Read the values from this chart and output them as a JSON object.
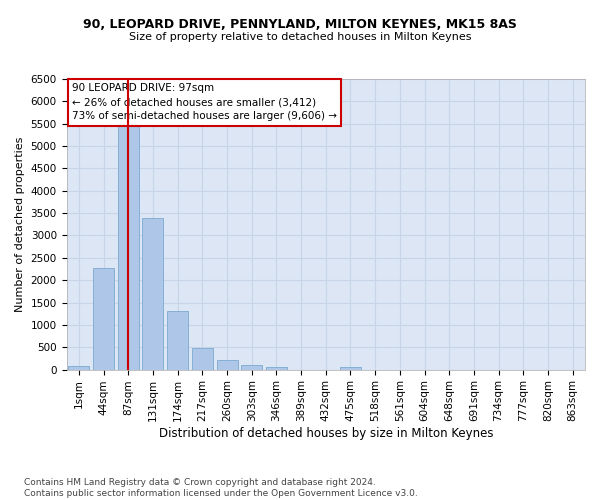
{
  "title_line1": "90, LEOPARD DRIVE, PENNYLAND, MILTON KEYNES, MK15 8AS",
  "title_line2": "Size of property relative to detached houses in Milton Keynes",
  "xlabel": "Distribution of detached houses by size in Milton Keynes",
  "ylabel": "Number of detached properties",
  "footnote_line1": "Contains HM Land Registry data © Crown copyright and database right 2024.",
  "footnote_line2": "Contains public sector information licensed under the Open Government Licence v3.0.",
  "bar_labels": [
    "1sqm",
    "44sqm",
    "87sqm",
    "131sqm",
    "174sqm",
    "217sqm",
    "260sqm",
    "303sqm",
    "346sqm",
    "389sqm",
    "432sqm",
    "475sqm",
    "518sqm",
    "561sqm",
    "604sqm",
    "648sqm",
    "691sqm",
    "734sqm",
    "777sqm",
    "820sqm",
    "863sqm"
  ],
  "bar_values": [
    70,
    2280,
    5440,
    3380,
    1310,
    475,
    220,
    95,
    60,
    0,
    0,
    60,
    0,
    0,
    0,
    0,
    0,
    0,
    0,
    0,
    0
  ],
  "bar_color": "#aec6e8",
  "bar_edgecolor": "#7aaad0",
  "grid_color": "#c8d4e8",
  "plot_background_color": "#dce6f5",
  "figure_background_color": "#ffffff",
  "vline_x": 2.0,
  "vline_color": "#cc0000",
  "annotation_text": "90 LEOPARD DRIVE: 97sqm\n← 26% of detached houses are smaller (3,412)\n73% of semi-detached houses are larger (9,606) →",
  "annotation_box_edgecolor": "#cc0000",
  "annotation_box_facecolor": "#ffffff",
  "ylim": [
    0,
    6500
  ],
  "yticks": [
    0,
    500,
    1000,
    1500,
    2000,
    2500,
    3000,
    3500,
    4000,
    4500,
    5000,
    5500,
    6000,
    6500
  ],
  "title1_fontsize": 9,
  "title2_fontsize": 8,
  "xlabel_fontsize": 8.5,
  "ylabel_fontsize": 8,
  "tick_fontsize": 7.5,
  "annot_fontsize": 7.5,
  "footnote_fontsize": 6.5
}
